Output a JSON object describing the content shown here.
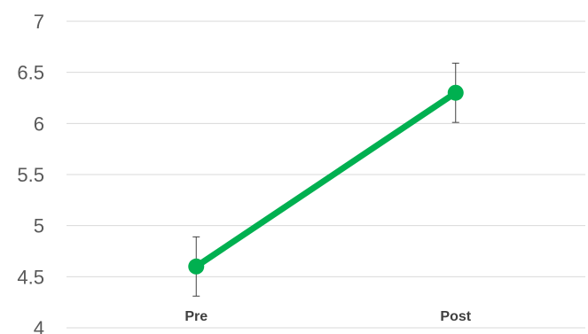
{
  "chart_data": {
    "type": "line",
    "categories": [
      "Pre",
      "Post"
    ],
    "series": [
      {
        "values": [
          4.6,
          6.3
        ],
        "error": [
          0.29,
          0.29
        ],
        "color": "#00b050"
      }
    ],
    "ylim": [
      4,
      7
    ],
    "yticks": [
      "4",
      "4.5",
      "5",
      "5.5",
      "6",
      "6.5",
      "7"
    ],
    "grid": true,
    "legend": "none"
  }
}
